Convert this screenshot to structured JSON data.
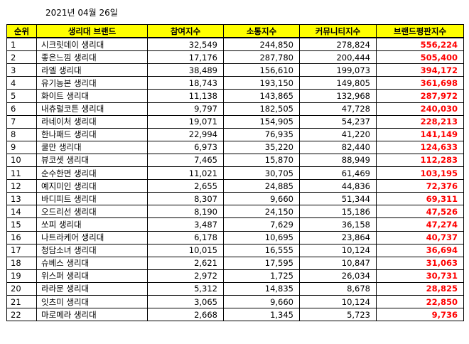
{
  "date": "2021년 04월 26일",
  "columns": [
    "순위",
    "생리대 브랜드",
    "참여지수",
    "소통지수",
    "커뮤니티지수",
    "브랜드평판지수"
  ],
  "rows": [
    [
      "1",
      "시크릿데이 생리대",
      "32,549",
      "244,850",
      "278,824",
      "556,224"
    ],
    [
      "2",
      "좋은느낌 생리대",
      "17,176",
      "287,780",
      "200,444",
      "505,400"
    ],
    [
      "3",
      "라엘 생리대",
      "38,489",
      "156,610",
      "199,073",
      "394,172"
    ],
    [
      "4",
      "유기농본 생리대",
      "18,743",
      "193,150",
      "149,805",
      "361,698"
    ],
    [
      "5",
      "화이트 생리대",
      "11,138",
      "143,865",
      "132,968",
      "287,972"
    ],
    [
      "6",
      "내츄럴코튼 생리대",
      "9,797",
      "182,505",
      "47,728",
      "240,030"
    ],
    [
      "7",
      "라네이처 생리대",
      "19,071",
      "154,905",
      "54,237",
      "228,213"
    ],
    [
      "8",
      "한나패드 생리대",
      "22,994",
      "76,935",
      "41,220",
      "141,149"
    ],
    [
      "9",
      "쿨만 생리대",
      "6,973",
      "35,220",
      "82,440",
      "124,633"
    ],
    [
      "10",
      "뷰코셋 생리대",
      "7,465",
      "15,870",
      "88,949",
      "112,283"
    ],
    [
      "11",
      "순수한면 생리대",
      "11,021",
      "30,705",
      "61,469",
      "103,195"
    ],
    [
      "12",
      "예지미인 생리대",
      "2,655",
      "24,885",
      "44,836",
      "72,376"
    ],
    [
      "13",
      "바디피트 생리대",
      "8,307",
      "9,660",
      "51,344",
      "69,311"
    ],
    [
      "14",
      "오드리선 생리대",
      "8,190",
      "24,150",
      "15,186",
      "47,526"
    ],
    [
      "15",
      "쏘피 생리대",
      "3,487",
      "7,629",
      "36,158",
      "47,274"
    ],
    [
      "16",
      "나트라케어 생리대",
      "6,178",
      "10,695",
      "23,864",
      "40,737"
    ],
    [
      "17",
      "청담소녀 생리대",
      "10,015",
      "16,555",
      "10,124",
      "36,694"
    ],
    [
      "18",
      "슈베스 생리대",
      "2,621",
      "17,595",
      "10,847",
      "31,063"
    ],
    [
      "19",
      "위스퍼 생리대",
      "2,972",
      "1,725",
      "26,034",
      "30,731"
    ],
    [
      "20",
      "라라문 생리대",
      "5,312",
      "14,835",
      "8,678",
      "28,825"
    ],
    [
      "21",
      "잇츠미 생리대",
      "3,065",
      "9,660",
      "10,124",
      "22,850"
    ],
    [
      "22",
      "마로메라 생리대",
      "2,668",
      "1,345",
      "5,723",
      "9,736"
    ]
  ],
  "colors": {
    "header_bg": "#ffff00",
    "index_text": "#ff0000"
  }
}
